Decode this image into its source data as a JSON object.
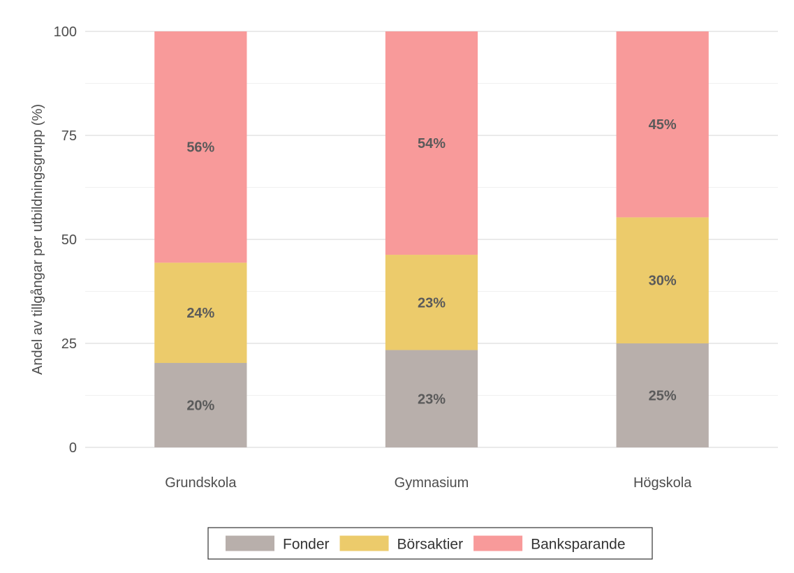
{
  "chart_data": {
    "type": "bar",
    "stacked": true,
    "categories": [
      "Grundskola",
      "Gymnasium",
      "Högskola"
    ],
    "series": [
      {
        "name": "Fonder",
        "values": [
          20.3,
          23.4,
          25.0
        ],
        "labels": [
          "20%",
          "23%",
          "25%"
        ],
        "color": "#b8afab"
      },
      {
        "name": "Börsaktier",
        "values": [
          24.1,
          22.9,
          30.3
        ],
        "labels": [
          "24%",
          "23%",
          "30%"
        ],
        "color": "#eccb6b"
      },
      {
        "name": "Banksparande",
        "values": [
          55.6,
          53.7,
          44.7
        ],
        "labels": [
          "56%",
          "54%",
          "45%"
        ],
        "color": "#f89a9a"
      }
    ],
    "ylabel": "Andel av tillgångar per utbildningsgrupp (%)",
    "xlabel": "",
    "ylim": [
      0,
      100
    ],
    "yticks": [
      0,
      25,
      50,
      75,
      100
    ],
    "grid": true,
    "legend": "bottom"
  }
}
